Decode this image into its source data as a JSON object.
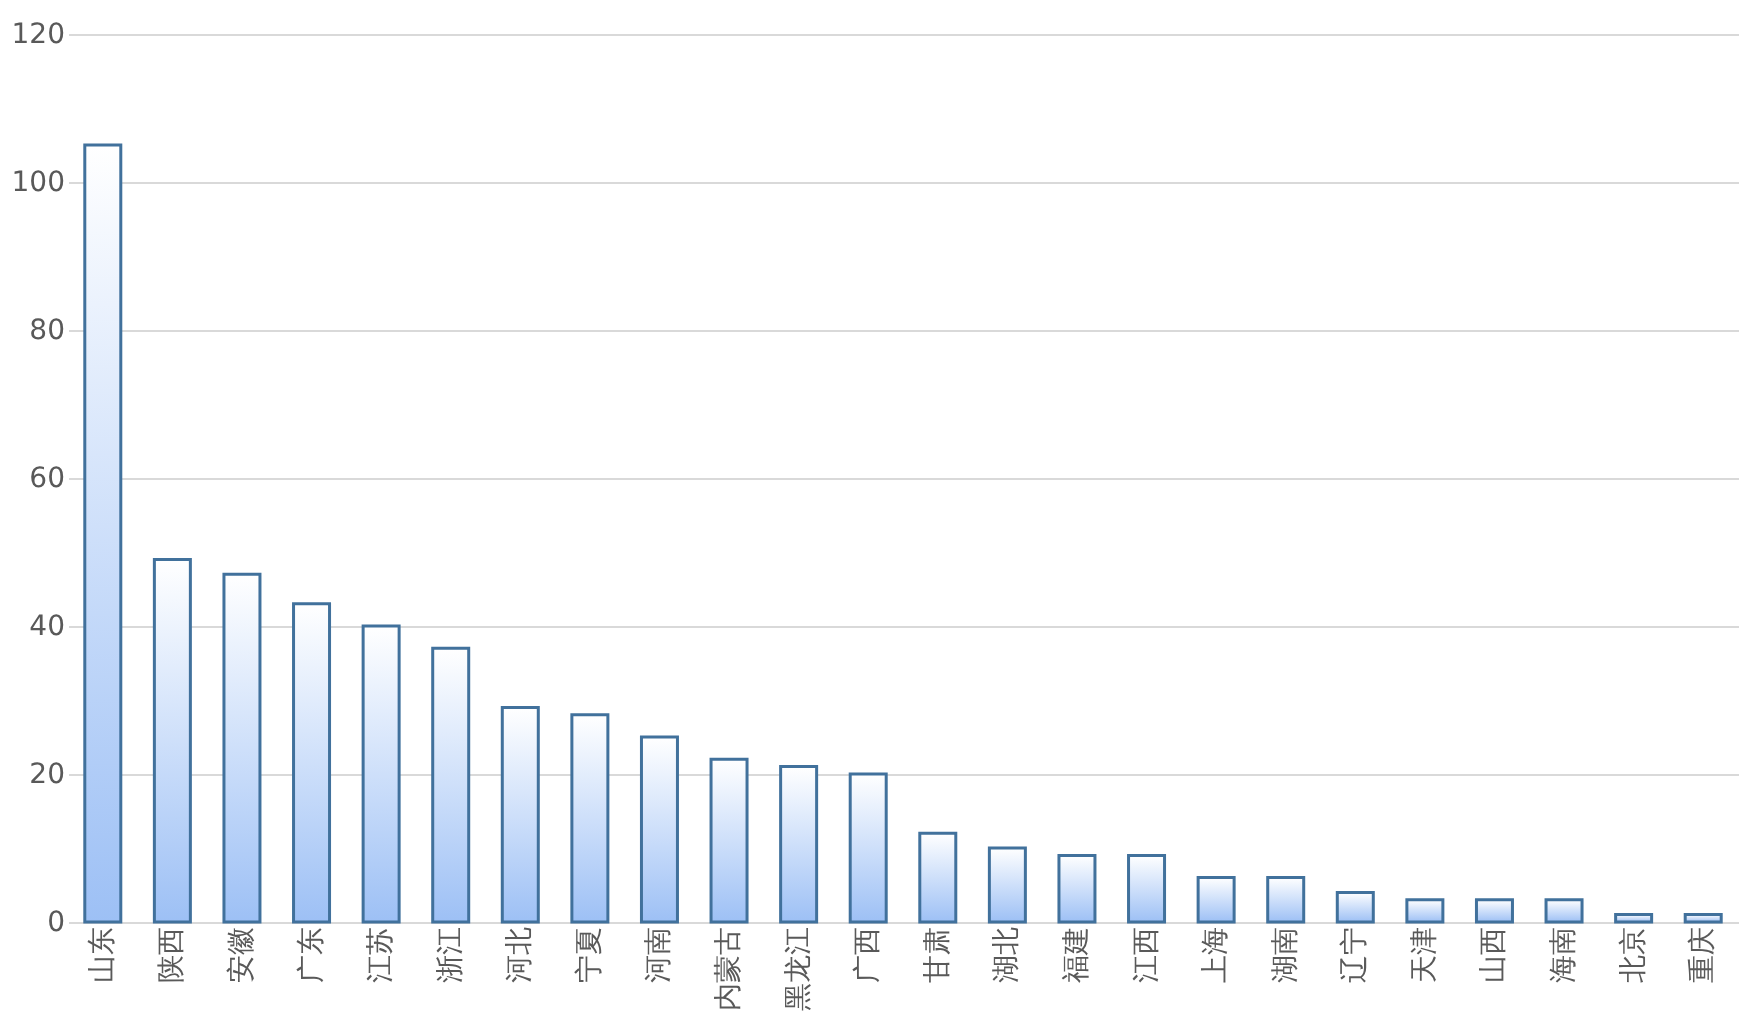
{
  "chart_data": {
    "type": "bar",
    "categories": [
      "山东",
      "陕西",
      "安徽",
      "广东",
      "江苏",
      "浙江",
      "河北",
      "宁夏",
      "河南",
      "内蒙古",
      "黑龙江",
      "广西",
      "甘肃",
      "湖北",
      "福建",
      "江西",
      "上海",
      "湖南",
      "辽宁",
      "天津",
      "山西",
      "海南",
      "北京",
      "重庆"
    ],
    "values": [
      105,
      49,
      47,
      43,
      40,
      37,
      29,
      28,
      25,
      22,
      21,
      20,
      12,
      10,
      9,
      9,
      6,
      6,
      4,
      3,
      3,
      3,
      1,
      1
    ],
    "color": "#41719c",
    "ylim": [
      0,
      120
    ],
    "yticks": [
      0,
      20,
      40,
      60,
      80,
      100,
      120
    ],
    "grid": "y"
  }
}
